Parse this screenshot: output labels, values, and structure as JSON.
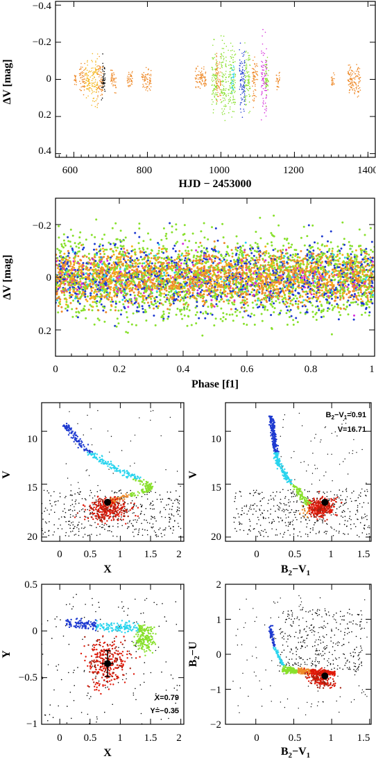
{
  "colors": {
    "orange": "#ee8a2a",
    "yellow": "#f5b418",
    "green": "#88e02c",
    "blue": "#1e3ad0",
    "cyan": "#29d4ee",
    "magenta": "#d42ad8",
    "red": "#e01a0a",
    "darkred": "#a32010",
    "black": "#000000"
  },
  "chart_data": [
    {
      "id": "lightcurve",
      "type": "scatter",
      "xlabel": "HJD − 2453000",
      "ylabel": "ΔV [mag]",
      "xlim": [
        550,
        1420
      ],
      "ylim": [
        0.42,
        -0.42
      ],
      "xticks": [
        600,
        800,
        1000,
        1200,
        1400
      ],
      "xtick_labels": [
        "600",
        "800",
        "1000",
        "1200",
        "1400"
      ],
      "yticks": [
        -0.4,
        -0.2,
        0,
        0.2,
        0.4
      ],
      "ytick_labels": [
        "−0.4",
        "−0.2",
        "0",
        "0.2",
        "0.4"
      ],
      "observing_blocks": [
        {
          "x_start": 600,
          "x_end": 608,
          "color": "orange",
          "amp": 0.06
        },
        {
          "x_start": 615,
          "x_end": 630,
          "color": "orange",
          "amp": 0.13
        },
        {
          "x_start": 630,
          "x_end": 645,
          "color": "yellow",
          "amp": 0.15
        },
        {
          "x_start": 648,
          "x_end": 665,
          "color": "yellow",
          "amp": 0.23
        },
        {
          "x_start": 665,
          "x_end": 680,
          "color": "orange",
          "amp": 0.2
        },
        {
          "x_start": 675,
          "x_end": 685,
          "color": "black",
          "amp": 0.18
        },
        {
          "x_start": 700,
          "x_end": 715,
          "color": "orange",
          "amp": 0.1
        },
        {
          "x_start": 745,
          "x_end": 760,
          "color": "orange",
          "amp": 0.08
        },
        {
          "x_start": 785,
          "x_end": 810,
          "color": "orange",
          "amp": 0.1
        },
        {
          "x_start": 930,
          "x_end": 960,
          "color": "orange",
          "amp": 0.1
        },
        {
          "x_start": 975,
          "x_end": 990,
          "color": "green",
          "amp": 0.3
        },
        {
          "x_start": 985,
          "x_end": 1000,
          "color": "orange",
          "amp": 0.22
        },
        {
          "x_start": 1000,
          "x_end": 1015,
          "color": "green",
          "amp": 0.33
        },
        {
          "x_start": 1020,
          "x_end": 1040,
          "color": "green",
          "amp": 0.3
        },
        {
          "x_start": 1028,
          "x_end": 1036,
          "color": "cyan",
          "amp": 0.15
        },
        {
          "x_start": 1050,
          "x_end": 1065,
          "color": "blue",
          "amp": 0.35
        },
        {
          "x_start": 1065,
          "x_end": 1080,
          "color": "green",
          "amp": 0.3
        },
        {
          "x_start": 1085,
          "x_end": 1100,
          "color": "orange",
          "amp": 0.2
        },
        {
          "x_start": 1110,
          "x_end": 1125,
          "color": "magenta",
          "amp": 0.32
        },
        {
          "x_start": 1120,
          "x_end": 1130,
          "color": "green",
          "amp": 0.2
        },
        {
          "x_start": 1150,
          "x_end": 1160,
          "color": "orange",
          "amp": 0.08
        },
        {
          "x_start": 1300,
          "x_end": 1310,
          "color": "orange",
          "amp": 0.05
        },
        {
          "x_start": 1345,
          "x_end": 1380,
          "color": "orange",
          "amp": 0.14
        }
      ]
    },
    {
      "id": "phased",
      "type": "scatter",
      "xlabel": "Phase [f1]",
      "xlabel_sub": "1",
      "ylabel": "ΔV [mag]",
      "xlim": [
        0,
        1
      ],
      "ylim": [
        0.3,
        -0.3
      ],
      "xticks": [
        0,
        0.2,
        0.4,
        0.6,
        0.8,
        1
      ],
      "xtick_labels": [
        "0",
        "0.2",
        "0.4",
        "0.6",
        "0.8",
        "1"
      ],
      "yticks": [
        -0.2,
        0,
        0.2
      ],
      "ytick_labels": [
        "−0.2",
        "0",
        "0.2"
      ],
      "series_colors": [
        "green",
        "orange",
        "yellow",
        "blue",
        "magenta",
        "cyan"
      ],
      "scatter_amp": 0.22
    },
    {
      "id": "cmd-x-v",
      "type": "scatter",
      "xlabel": "X",
      "ylabel": "V",
      "xlim": [
        -0.3,
        2.05
      ],
      "ylim": [
        7.3,
        20.4
      ],
      "xticks": [
        0,
        0.5,
        1,
        1.5,
        2
      ],
      "xtick_labels": [
        "0",
        "0.5",
        "1",
        "1.5",
        "2"
      ],
      "yticks": [
        10,
        15,
        20
      ],
      "ytick_labels": [
        "10",
        "15",
        "20"
      ],
      "sequence": [
        {
          "x": 0.1,
          "y": 9.5
        },
        {
          "x": 0.25,
          "y": 10.5
        },
        {
          "x": 0.45,
          "y": 11.8
        },
        {
          "x": 0.7,
          "y": 12.8
        },
        {
          "x": 0.95,
          "y": 13.6
        },
        {
          "x": 1.2,
          "y": 14.3
        },
        {
          "x": 1.45,
          "y": 15.0
        },
        {
          "x": 1.5,
          "y": 15.5
        },
        {
          "x": 1.2,
          "y": 16.0
        },
        {
          "x": 0.9,
          "y": 16.5
        },
        {
          "x": 0.8,
          "y": 16.8
        }
      ],
      "highlight": {
        "x": 0.79,
        "y": 16.71
      }
    },
    {
      "id": "cmd-bv-v",
      "type": "scatter",
      "xlabel": "B2−V1",
      "xlabel_base": "B",
      "xlabel_sub1": "2",
      "xlabel_mid": "−V",
      "xlabel_sub2": "1",
      "ylabel": "V",
      "xlim": [
        -0.4,
        1.52
      ],
      "ylim": [
        7.3,
        20.4
      ],
      "xticks": [
        0,
        0.5,
        1,
        1.5
      ],
      "xtick_labels": [
        "0",
        "0.5",
        "1",
        "1.5"
      ],
      "yticks": [
        10,
        15,
        20
      ],
      "ytick_labels": [
        "10",
        "15",
        "20"
      ],
      "annotation_1_base": "B",
      "annotation_1_sub1": "2",
      "annotation_1_mid": "−V",
      "annotation_1_sub2": "1",
      "annotation_1_value": "=0.91",
      "annotation_2": "V=16.71",
      "highlight": {
        "x": 0.91,
        "y": 16.71
      }
    },
    {
      "id": "cc-x-y",
      "type": "scatter",
      "xlabel": "X",
      "ylabel": "Y",
      "xlim": [
        -0.3,
        2.05
      ],
      "ylim": [
        0.5,
        -1.0
      ],
      "xticks": [
        0,
        0.5,
        1,
        1.5,
        2
      ],
      "xtick_labels": [
        "0",
        "0.5",
        "1",
        "1.5",
        "2"
      ],
      "yticks": [
        0.5,
        0,
        -0.5,
        -1
      ],
      "ytick_labels": [
        "0.5",
        "0",
        "−0.5",
        "−1"
      ],
      "annotation_1": "X=0.79",
      "annotation_2": "Y=−0.35",
      "highlight": {
        "x": 0.79,
        "y": -0.35
      }
    },
    {
      "id": "cc-bv-bu",
      "type": "scatter",
      "xlabel": "B2−V1",
      "xlabel_base": "B",
      "xlabel_sub1": "2",
      "xlabel_mid": "−V",
      "xlabel_sub2": "1",
      "ylabel": "B2−U",
      "ylabel_base": "B",
      "ylabel_sub": "2",
      "ylabel_rest": "−U",
      "xlim": [
        -0.4,
        1.52
      ],
      "ylim": [
        2.0,
        -2.0
      ],
      "xticks": [
        0,
        0.5,
        1,
        1.5
      ],
      "xtick_labels": [
        "0",
        "0.5",
        "1",
        "1.5"
      ],
      "yticks": [
        2,
        1,
        0,
        -1,
        -2
      ],
      "ytick_labels": [
        "2",
        "1",
        "0",
        "−1",
        "−2"
      ],
      "highlight": {
        "x": 0.91,
        "y": -0.62
      }
    }
  ]
}
